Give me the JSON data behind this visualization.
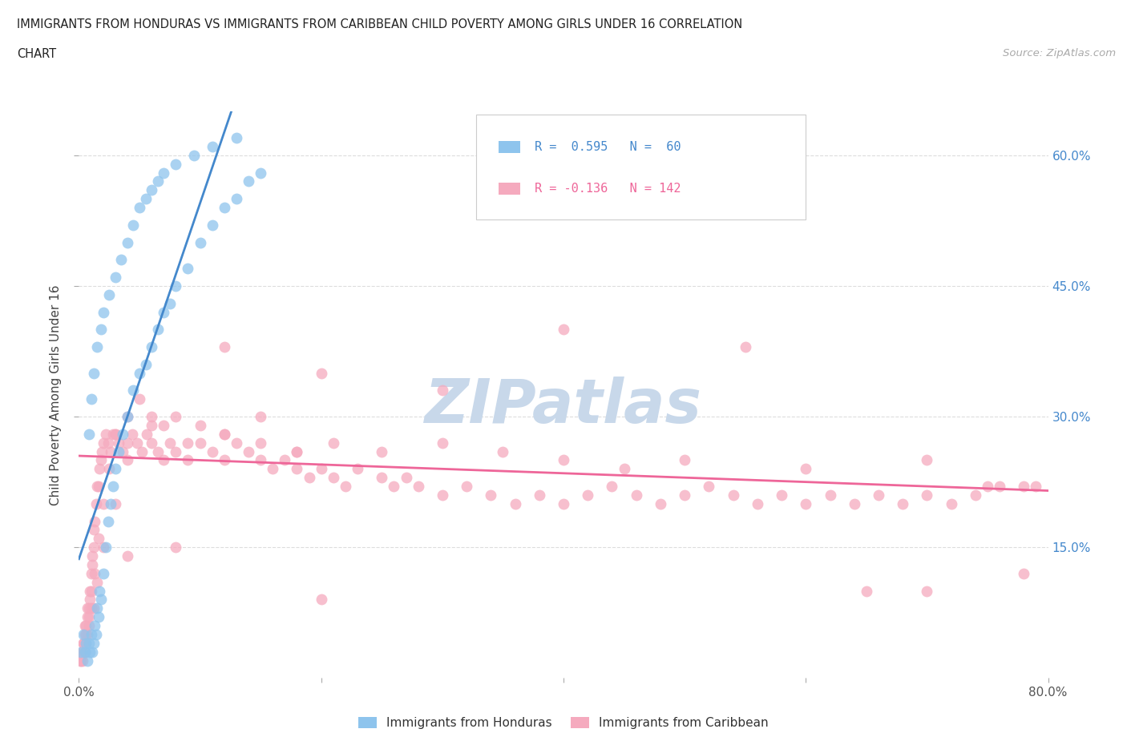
{
  "title_line1": "IMMIGRANTS FROM HONDURAS VS IMMIGRANTS FROM CARIBBEAN CHILD POVERTY AMONG GIRLS UNDER 16 CORRELATION",
  "title_line2": "CHART",
  "source": "Source: ZipAtlas.com",
  "ylabel": "Child Poverty Among Girls Under 16",
  "xlim": [
    0.0,
    0.8
  ],
  "ylim": [
    0.0,
    0.65
  ],
  "right_yticks": [
    0.15,
    0.3,
    0.45,
    0.6
  ],
  "right_yticklabels": [
    "15.0%",
    "30.0%",
    "45.0%",
    "60.0%"
  ],
  "xticks": [
    0.0,
    0.2,
    0.4,
    0.6,
    0.8
  ],
  "xticklabels": [
    "0.0%",
    "",
    "",
    "",
    "80.0%"
  ],
  "honduras_color": "#8EC4ED",
  "caribbean_color": "#F5AABE",
  "honduras_line_color": "#4488CC",
  "caribbean_line_color": "#EE6699",
  "legend_label1": "Immigrants from Honduras",
  "legend_label2": "Immigrants from Caribbean",
  "watermark": "ZIPatlas",
  "watermark_color": "#C8D8EA",
  "background_color": "#FFFFFF",
  "grid_color": "#DDDDDD",
  "honduras_x": [
    0.002,
    0.004,
    0.005,
    0.006,
    0.007,
    0.008,
    0.009,
    0.01,
    0.011,
    0.012,
    0.013,
    0.014,
    0.015,
    0.016,
    0.017,
    0.018,
    0.02,
    0.022,
    0.024,
    0.026,
    0.028,
    0.03,
    0.033,
    0.036,
    0.04,
    0.045,
    0.05,
    0.055,
    0.06,
    0.065,
    0.07,
    0.075,
    0.08,
    0.09,
    0.1,
    0.11,
    0.12,
    0.13,
    0.14,
    0.15,
    0.008,
    0.01,
    0.012,
    0.015,
    0.018,
    0.02,
    0.025,
    0.03,
    0.035,
    0.04,
    0.045,
    0.05,
    0.055,
    0.06,
    0.065,
    0.07,
    0.08,
    0.095,
    0.11,
    0.13
  ],
  "honduras_y": [
    0.03,
    0.05,
    0.03,
    0.04,
    0.02,
    0.04,
    0.03,
    0.05,
    0.03,
    0.04,
    0.06,
    0.05,
    0.08,
    0.07,
    0.1,
    0.09,
    0.12,
    0.15,
    0.18,
    0.2,
    0.22,
    0.24,
    0.26,
    0.28,
    0.3,
    0.33,
    0.35,
    0.36,
    0.38,
    0.4,
    0.42,
    0.43,
    0.45,
    0.47,
    0.5,
    0.52,
    0.54,
    0.55,
    0.57,
    0.58,
    0.28,
    0.32,
    0.35,
    0.38,
    0.4,
    0.42,
    0.44,
    0.46,
    0.48,
    0.5,
    0.52,
    0.54,
    0.55,
    0.56,
    0.57,
    0.58,
    0.59,
    0.6,
    0.61,
    0.62
  ],
  "caribbean_x": [
    0.001,
    0.002,
    0.003,
    0.003,
    0.004,
    0.004,
    0.005,
    0.005,
    0.006,
    0.006,
    0.007,
    0.007,
    0.008,
    0.008,
    0.009,
    0.009,
    0.01,
    0.01,
    0.011,
    0.011,
    0.012,
    0.012,
    0.013,
    0.014,
    0.015,
    0.016,
    0.017,
    0.018,
    0.019,
    0.02,
    0.022,
    0.024,
    0.026,
    0.028,
    0.03,
    0.033,
    0.036,
    0.04,
    0.044,
    0.048,
    0.052,
    0.056,
    0.06,
    0.065,
    0.07,
    0.075,
    0.08,
    0.09,
    0.1,
    0.11,
    0.12,
    0.13,
    0.14,
    0.15,
    0.16,
    0.17,
    0.18,
    0.19,
    0.2,
    0.21,
    0.22,
    0.23,
    0.25,
    0.26,
    0.27,
    0.28,
    0.3,
    0.32,
    0.34,
    0.36,
    0.38,
    0.4,
    0.42,
    0.44,
    0.46,
    0.48,
    0.5,
    0.52,
    0.54,
    0.56,
    0.58,
    0.6,
    0.62,
    0.64,
    0.66,
    0.68,
    0.7,
    0.72,
    0.74,
    0.76,
    0.003,
    0.005,
    0.007,
    0.01,
    0.013,
    0.016,
    0.02,
    0.025,
    0.03,
    0.04,
    0.05,
    0.06,
    0.07,
    0.08,
    0.1,
    0.12,
    0.15,
    0.18,
    0.21,
    0.25,
    0.3,
    0.35,
    0.4,
    0.45,
    0.5,
    0.6,
    0.7,
    0.75,
    0.78,
    0.79,
    0.005,
    0.008,
    0.012,
    0.015,
    0.02,
    0.03,
    0.04,
    0.06,
    0.09,
    0.12,
    0.15,
    0.18,
    0.12,
    0.2,
    0.3,
    0.4,
    0.55,
    0.65,
    0.7,
    0.78,
    0.04,
    0.08,
    0.2
  ],
  "caribbean_y": [
    0.02,
    0.02,
    0.03,
    0.03,
    0.04,
    0.04,
    0.05,
    0.06,
    0.05,
    0.06,
    0.07,
    0.08,
    0.07,
    0.08,
    0.09,
    0.1,
    0.1,
    0.12,
    0.13,
    0.14,
    0.15,
    0.17,
    0.18,
    0.2,
    0.22,
    0.22,
    0.24,
    0.25,
    0.26,
    0.27,
    0.28,
    0.27,
    0.26,
    0.28,
    0.28,
    0.27,
    0.26,
    0.27,
    0.28,
    0.27,
    0.26,
    0.28,
    0.27,
    0.26,
    0.25,
    0.27,
    0.26,
    0.25,
    0.27,
    0.26,
    0.25,
    0.27,
    0.26,
    0.25,
    0.24,
    0.25,
    0.24,
    0.23,
    0.24,
    0.23,
    0.22,
    0.24,
    0.23,
    0.22,
    0.23,
    0.22,
    0.21,
    0.22,
    0.21,
    0.2,
    0.21,
    0.2,
    0.21,
    0.22,
    0.21,
    0.2,
    0.21,
    0.22,
    0.21,
    0.2,
    0.21,
    0.2,
    0.21,
    0.2,
    0.21,
    0.2,
    0.21,
    0.2,
    0.21,
    0.22,
    0.02,
    0.03,
    0.05,
    0.08,
    0.12,
    0.16,
    0.2,
    0.24,
    0.28,
    0.3,
    0.32,
    0.3,
    0.29,
    0.3,
    0.29,
    0.28,
    0.27,
    0.26,
    0.27,
    0.26,
    0.27,
    0.26,
    0.25,
    0.24,
    0.25,
    0.24,
    0.25,
    0.22,
    0.22,
    0.22,
    0.04,
    0.06,
    0.08,
    0.11,
    0.15,
    0.2,
    0.25,
    0.29,
    0.27,
    0.28,
    0.3,
    0.26,
    0.38,
    0.35,
    0.33,
    0.4,
    0.38,
    0.1,
    0.1,
    0.12,
    0.14,
    0.15,
    0.09
  ]
}
